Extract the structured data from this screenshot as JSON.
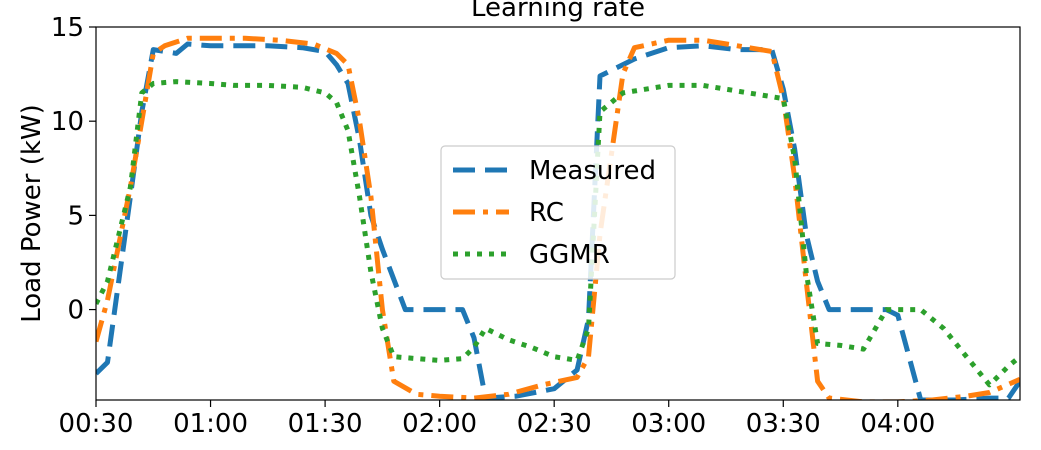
{
  "chart_data": {
    "type": "line",
    "title": "Learning rate",
    "xlabel": "",
    "ylabel": "Load Power (kW)",
    "x_tick_labels": [
      "00:30",
      "01:00",
      "01:30",
      "02:00",
      "02:30",
      "03:00",
      "03:30",
      "04:00"
    ],
    "y_ticks": [
      0,
      5,
      10,
      15
    ],
    "xlim": [
      "00:30",
      "04:32"
    ],
    "ylim": [
      -4.8,
      15
    ],
    "grid": false,
    "legend_position": "center",
    "series": [
      {
        "name": "Measured",
        "color": "#1f77b4",
        "style": "dashed",
        "points": [
          [
            "00:30",
            -3.4
          ],
          [
            "00:33",
            -2.8
          ],
          [
            "00:39",
            6.0
          ],
          [
            "00:42",
            10.5
          ],
          [
            "00:45",
            13.8
          ],
          [
            "00:51",
            13.6
          ],
          [
            "00:54",
            14.1
          ],
          [
            "01:00",
            14.0
          ],
          [
            "01:06",
            14.0
          ],
          [
            "01:15",
            14.0
          ],
          [
            "01:24",
            13.9
          ],
          [
            "01:30",
            13.7
          ],
          [
            "01:33",
            13.0
          ],
          [
            "01:36",
            12.0
          ],
          [
            "01:39",
            9.0
          ],
          [
            "01:42",
            5.0
          ],
          [
            "01:45",
            3.2
          ],
          [
            "01:51",
            0.0
          ],
          [
            "02:00",
            0.0
          ],
          [
            "02:06",
            0.0
          ],
          [
            "02:09",
            -1.5
          ],
          [
            "02:12",
            -4.7
          ],
          [
            "02:20",
            -4.6
          ],
          [
            "02:30",
            -4.2
          ],
          [
            "02:36",
            -3.2
          ],
          [
            "02:39",
            -0.5
          ],
          [
            "02:42",
            12.4
          ],
          [
            "02:51",
            13.3
          ],
          [
            "03:00",
            13.9
          ],
          [
            "03:09",
            14.0
          ],
          [
            "03:18",
            13.8
          ],
          [
            "03:27",
            13.8
          ],
          [
            "03:30",
            11.7
          ],
          [
            "03:33",
            8.5
          ],
          [
            "03:36",
            4.0
          ],
          [
            "03:39",
            1.5
          ],
          [
            "03:42",
            0.0
          ],
          [
            "03:51",
            0.0
          ],
          [
            "03:57",
            0.0
          ],
          [
            "04:00",
            -0.3
          ],
          [
            "04:06",
            -4.8
          ],
          [
            "04:15",
            -4.8
          ],
          [
            "04:24",
            -4.7
          ],
          [
            "04:29",
            -4.7
          ],
          [
            "04:32",
            -3.8
          ]
        ]
      },
      {
        "name": "RC",
        "color": "#ff7f0e",
        "style": "dashdot",
        "points": [
          [
            "00:30",
            -1.7
          ],
          [
            "00:33",
            0.5
          ],
          [
            "00:39",
            6.5
          ],
          [
            "00:42",
            10.0
          ],
          [
            "00:45",
            13.6
          ],
          [
            "00:48",
            14.0
          ],
          [
            "00:54",
            14.4
          ],
          [
            "01:00",
            14.4
          ],
          [
            "01:09",
            14.4
          ],
          [
            "01:18",
            14.3
          ],
          [
            "01:27",
            14.1
          ],
          [
            "01:33",
            13.6
          ],
          [
            "01:36",
            13.0
          ],
          [
            "01:39",
            10.0
          ],
          [
            "01:42",
            6.0
          ],
          [
            "01:45",
            0.0
          ],
          [
            "01:48",
            -3.8
          ],
          [
            "01:54",
            -4.5
          ],
          [
            "02:00",
            -4.6
          ],
          [
            "02:09",
            -4.7
          ],
          [
            "02:18",
            -4.5
          ],
          [
            "02:27",
            -4.0
          ],
          [
            "02:36",
            -3.6
          ],
          [
            "02:39",
            -2.5
          ],
          [
            "02:42",
            4.0
          ],
          [
            "02:48",
            12.5
          ],
          [
            "02:51",
            13.9
          ],
          [
            "03:00",
            14.3
          ],
          [
            "03:09",
            14.3
          ],
          [
            "03:18",
            14.0
          ],
          [
            "03:27",
            13.7
          ],
          [
            "03:30",
            11.2
          ],
          [
            "03:33",
            7.0
          ],
          [
            "03:36",
            1.5
          ],
          [
            "03:39",
            -3.8
          ],
          [
            "03:42",
            -4.7
          ],
          [
            "03:51",
            -4.9
          ],
          [
            "04:00",
            -4.9
          ],
          [
            "04:09",
            -4.8
          ],
          [
            "04:18",
            -4.6
          ],
          [
            "04:24",
            -4.4
          ],
          [
            "04:32",
            -3.7
          ]
        ]
      },
      {
        "name": "GGMR",
        "color": "#2ca02c",
        "style": "dotted",
        "points": [
          [
            "00:30",
            0.3
          ],
          [
            "00:33",
            1.5
          ],
          [
            "00:39",
            6.5
          ],
          [
            "00:42",
            11.5
          ],
          [
            "00:45",
            12.0
          ],
          [
            "00:51",
            12.1
          ],
          [
            "01:00",
            12.0
          ],
          [
            "01:06",
            11.9
          ],
          [
            "01:15",
            11.9
          ],
          [
            "01:24",
            11.8
          ],
          [
            "01:30",
            11.5
          ],
          [
            "01:33",
            11.0
          ],
          [
            "01:36",
            9.5
          ],
          [
            "01:39",
            6.0
          ],
          [
            "01:42",
            2.0
          ],
          [
            "01:45",
            -1.0
          ],
          [
            "01:48",
            -2.5
          ],
          [
            "01:54",
            -2.6
          ],
          [
            "02:00",
            -2.7
          ],
          [
            "02:06",
            -2.6
          ],
          [
            "02:09",
            -2.0
          ],
          [
            "02:12",
            -1.0
          ],
          [
            "02:18",
            -1.6
          ],
          [
            "02:24",
            -2.0
          ],
          [
            "02:30",
            -2.5
          ],
          [
            "02:36",
            -2.7
          ],
          [
            "02:39",
            -1.0
          ],
          [
            "02:42",
            10.5
          ],
          [
            "02:48",
            11.5
          ],
          [
            "03:00",
            11.9
          ],
          [
            "03:09",
            11.9
          ],
          [
            "03:18",
            11.6
          ],
          [
            "03:27",
            11.3
          ],
          [
            "03:30",
            11.2
          ],
          [
            "03:33",
            8.0
          ],
          [
            "03:36",
            2.0
          ],
          [
            "03:39",
            -1.8
          ],
          [
            "03:45",
            -1.9
          ],
          [
            "03:51",
            -2.1
          ],
          [
            "03:57",
            0.0
          ],
          [
            "04:03",
            0.0
          ],
          [
            "04:06",
            0.0
          ],
          [
            "04:12",
            -1.0
          ],
          [
            "04:18",
            -2.5
          ],
          [
            "04:24",
            -4.0
          ],
          [
            "04:29",
            -3.0
          ],
          [
            "04:32",
            -2.5
          ]
        ]
      }
    ]
  }
}
